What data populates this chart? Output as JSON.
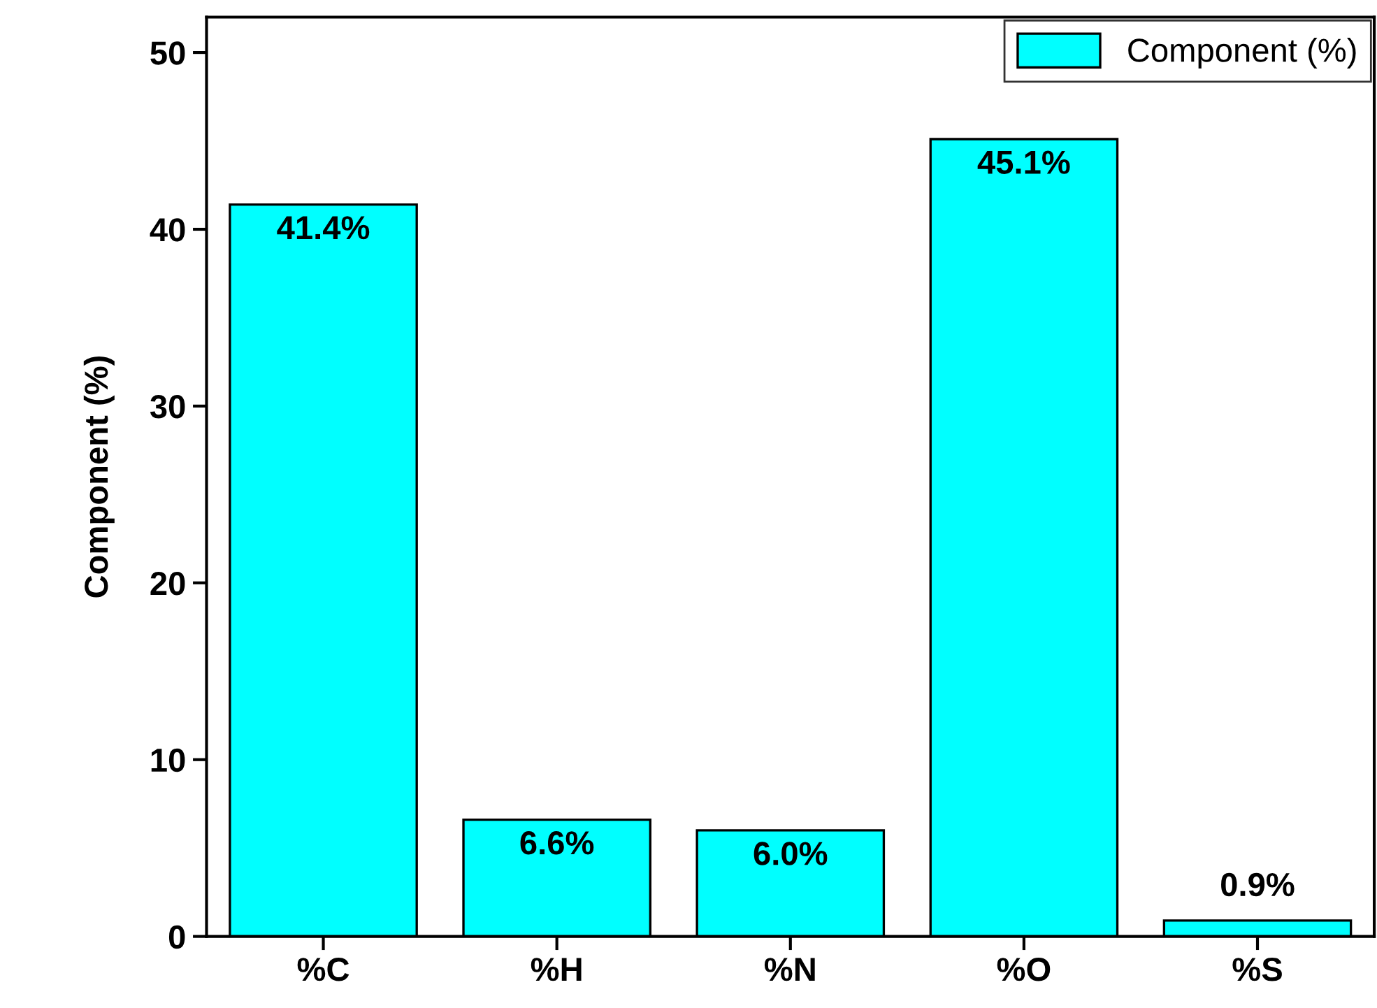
{
  "chart_data": {
    "type": "bar",
    "ylabel": "Component (%)",
    "categories": [
      "%C",
      "%H",
      "%N",
      "%O",
      "%S"
    ],
    "series": [
      {
        "name": "Component (%)",
        "color": "#00ffff",
        "values": [
          41.4,
          6.6,
          6.0,
          45.1,
          0.9
        ],
        "value_labels": [
          "41.4%",
          "6.6%",
          "6.0%",
          "45.1%",
          "0.9%"
        ]
      }
    ],
    "ylim": [
      0,
      52
    ],
    "yticks": [
      0,
      10,
      20,
      30,
      40,
      50
    ],
    "grid": false,
    "legend": "top right"
  }
}
